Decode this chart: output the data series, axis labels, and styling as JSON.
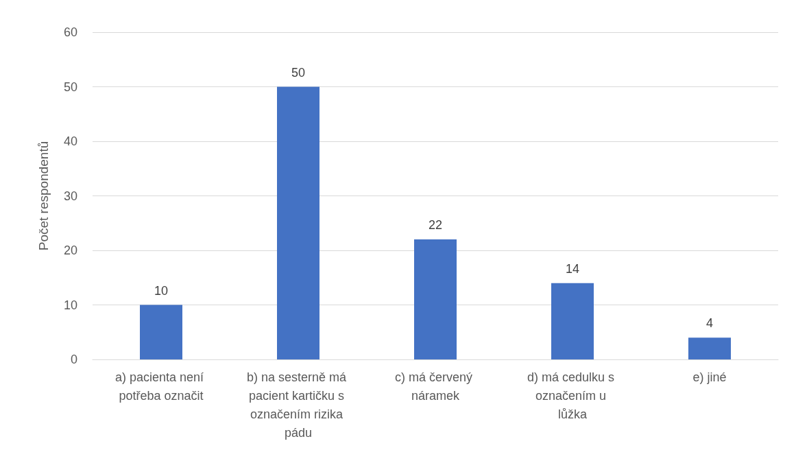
{
  "chart_data": {
    "type": "bar",
    "ylabel": "Počet respondentů",
    "categories": [
      "a) pacienta není potřeba označit",
      "b) na sesterně má pacient kartičku s označením rizika pádu",
      "c) má červený náramek",
      "d) má cedulku s označením u lůžka",
      "e) jiné"
    ],
    "values": [
      10,
      50,
      22,
      14,
      4
    ],
    "color": "#4472c4",
    "ylim": [
      0,
      60
    ],
    "yticks": [
      0,
      10,
      20,
      30,
      40,
      50,
      60
    ],
    "grid": "y",
    "data_labels": true
  }
}
